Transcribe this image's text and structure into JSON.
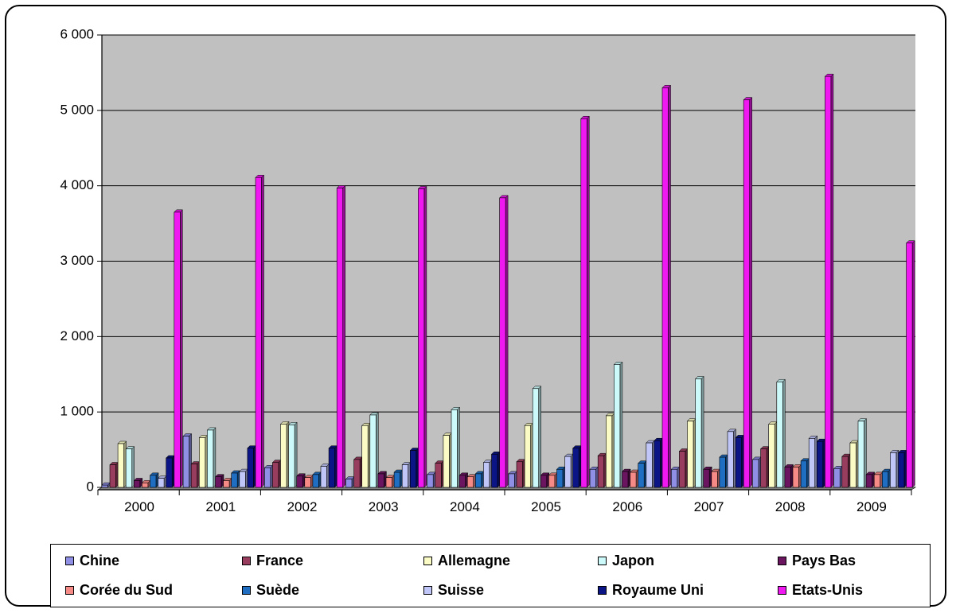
{
  "chart_data": {
    "type": "bar",
    "categories": [
      "2000",
      "2001",
      "2002",
      "2003",
      "2004",
      "2005",
      "2006",
      "2007",
      "2008",
      "2009"
    ],
    "ylim": [
      0,
      6000
    ],
    "yticks": [
      "0",
      "1 000",
      "2 000",
      "3 000",
      "4 000",
      "5 000",
      "6 000"
    ],
    "grid": true,
    "legend_position": "bottom",
    "series": [
      {
        "name": "Chine",
        "color": "#8f8fe6",
        "values": [
          30,
          680,
          260,
          110,
          170,
          180,
          240,
          240,
          370,
          250
        ]
      },
      {
        "name": "France",
        "color": "#993d5f",
        "values": [
          300,
          310,
          330,
          370,
          320,
          340,
          420,
          480,
          510,
          410
        ]
      },
      {
        "name": "Allemagne",
        "color": "#fbfbc5",
        "values": [
          580,
          660,
          840,
          820,
          690,
          820,
          950,
          880,
          840,
          590
        ]
      },
      {
        "name": "Japon",
        "color": "#ccfafb",
        "values": [
          510,
          760,
          830,
          960,
          1030,
          1310,
          1630,
          1440,
          1400,
          880
        ]
      },
      {
        "name": "Pays Bas",
        "color": "#6b1561",
        "values": [
          90,
          140,
          150,
          180,
          160,
          160,
          210,
          240,
          270,
          170
        ]
      },
      {
        "name": "Corée du Sud",
        "color": "#f68a86",
        "values": [
          60,
          90,
          130,
          130,
          140,
          160,
          200,
          210,
          270,
          170
        ]
      },
      {
        "name": "Suède",
        "color": "#1f6ec2",
        "values": [
          160,
          190,
          170,
          200,
          180,
          240,
          320,
          400,
          350,
          210
        ]
      },
      {
        "name": "Suisse",
        "color": "#c0c6f7",
        "values": [
          120,
          210,
          280,
          300,
          330,
          410,
          590,
          740,
          650,
          460
        ]
      },
      {
        "name": "Royaume Uni",
        "color": "#0b1585",
        "values": [
          390,
          520,
          520,
          490,
          440,
          520,
          620,
          660,
          610,
          460
        ]
      },
      {
        "name": "Etats-Unis",
        "color": "#f018f0",
        "values": [
          3650,
          4110,
          3970,
          3960,
          3840,
          4890,
          5300,
          5140,
          5450,
          3240
        ]
      }
    ]
  }
}
